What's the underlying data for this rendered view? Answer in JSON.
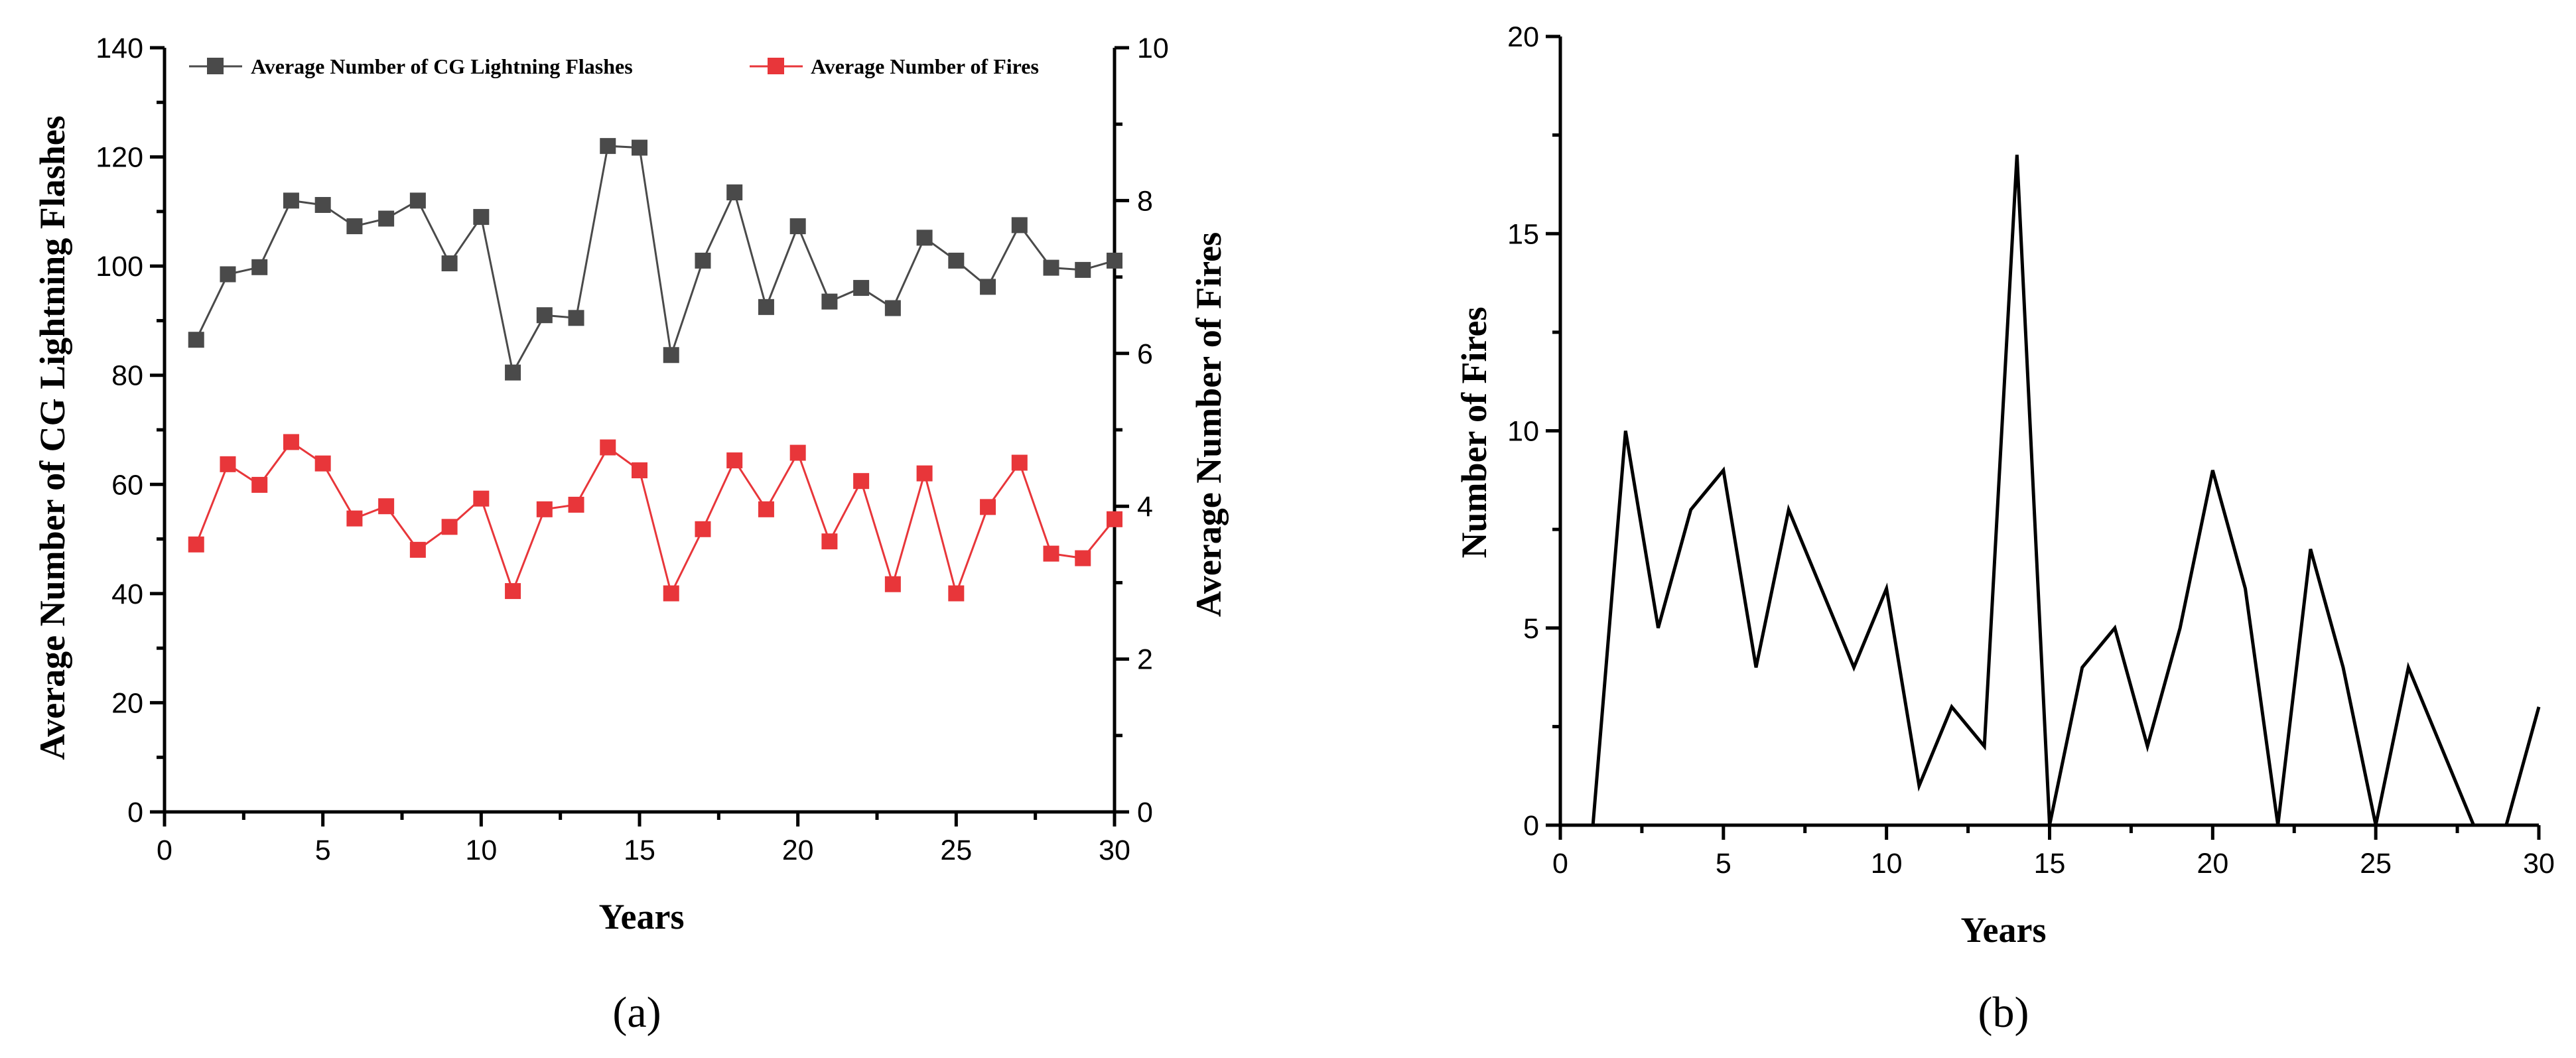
{
  "chart_data": [
    {
      "type": "line",
      "panel_label": "(a)",
      "xlabel": "Years",
      "ylabel_left": "Average Number of CG Lightning Flashes",
      "ylabel_right": "Average Number of Fires",
      "xlim": [
        0,
        30
      ],
      "ylim_left": [
        0,
        140
      ],
      "ylim_right": [
        0,
        10
      ],
      "x_ticks": [
        0,
        5,
        10,
        15,
        20,
        25,
        30
      ],
      "y_ticks_left": [
        0,
        20,
        40,
        60,
        80,
        100,
        120,
        140
      ],
      "y_ticks_right": [
        0,
        2,
        4,
        6,
        8,
        10
      ],
      "x": [
        1,
        2,
        3,
        4,
        5,
        6,
        7,
        8,
        9,
        10,
        11,
        12,
        13,
        14,
        15,
        16,
        17,
        18,
        19,
        20,
        21,
        22,
        23,
        24,
        25,
        26,
        27,
        28,
        29,
        30
      ],
      "series": [
        {
          "name": "Average Number of CG Lightning Flashes",
          "axis": "left",
          "color": "#4a4a4a",
          "values": [
            86.5,
            98.5,
            99.8,
            112,
            111.2,
            107.3,
            108.7,
            112,
            100.5,
            109,
            80.5,
            91,
            90.5,
            122,
            121.7,
            83.7,
            101,
            113.5,
            92.5,
            107.3,
            93.5,
            96,
            92.3,
            105.2,
            101,
            96.2,
            107.5,
            99.7,
            99.3,
            101
          ]
        },
        {
          "name": "Average Number of Fires",
          "axis": "right",
          "color": "#e8363a",
          "values": [
            3.5,
            4.55,
            4.28,
            4.84,
            4.56,
            3.84,
            4.0,
            3.43,
            3.73,
            4.1,
            2.89,
            3.96,
            4.02,
            4.77,
            4.47,
            2.86,
            3.7,
            4.6,
            3.96,
            4.7,
            3.54,
            4.33,
            2.98,
            4.43,
            2.86,
            3.99,
            4.57,
            3.38,
            3.32,
            3.83
          ]
        }
      ]
    },
    {
      "type": "line",
      "panel_label": "(b)",
      "xlabel": "Years",
      "ylabel": "Number of Fires",
      "xlim": [
        0,
        30
      ],
      "ylim": [
        0,
        20
      ],
      "x_ticks": [
        0,
        5,
        10,
        15,
        20,
        25,
        30
      ],
      "y_ticks": [
        0,
        5,
        10,
        15,
        20
      ],
      "x": [
        1,
        2,
        3,
        4,
        5,
        6,
        7,
        8,
        9,
        10,
        11,
        12,
        13,
        14,
        15,
        16,
        17,
        18,
        19,
        20,
        21,
        22,
        23,
        24,
        25,
        26,
        27,
        28,
        29,
        30
      ],
      "series": [
        {
          "name": "Number of Fires",
          "color": "#000000",
          "values": [
            0,
            10,
            5,
            8,
            9,
            4,
            8,
            6,
            4,
            6,
            1,
            3,
            2,
            17,
            0,
            4,
            5,
            2,
            5,
            9,
            6,
            0,
            7,
            4,
            0,
            4,
            2,
            0,
            0,
            3
          ]
        }
      ]
    }
  ]
}
